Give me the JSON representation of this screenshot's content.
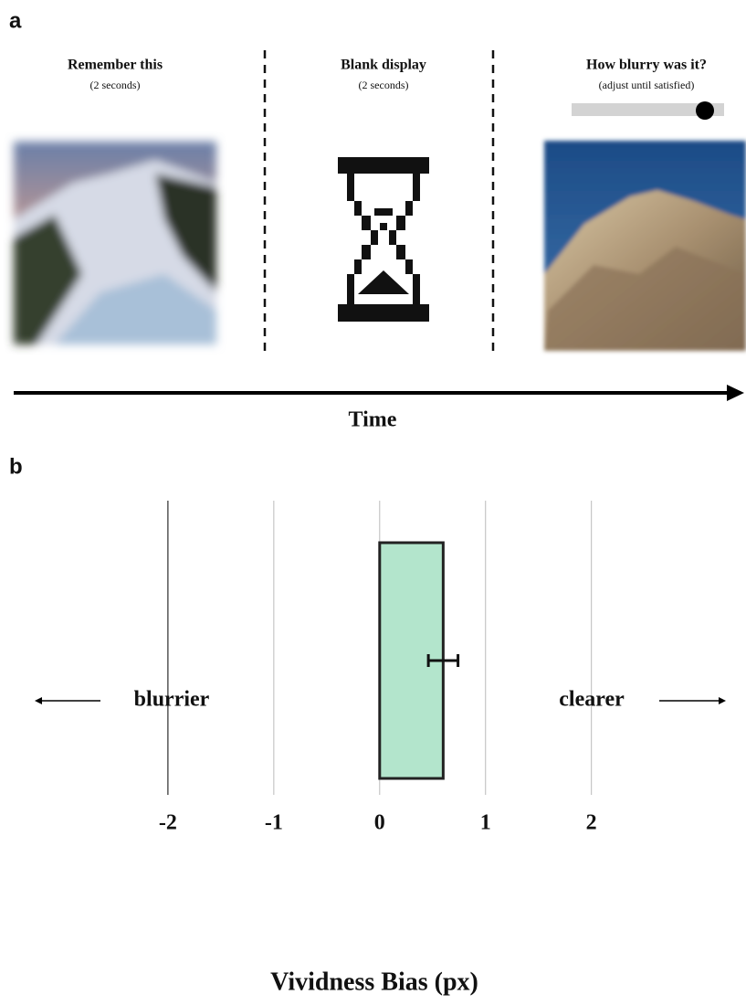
{
  "panel_a": {
    "label": "a",
    "steps": [
      {
        "title": "Remember this",
        "subtitle": "(2 seconds)"
      },
      {
        "title": "Blank display",
        "subtitle": "(2 seconds)"
      },
      {
        "title": "How blurry was it?",
        "subtitle": "(adjust until satisfied)"
      }
    ],
    "time_label": "Time"
  },
  "panel_b": {
    "label": "b"
  },
  "chart_data": {
    "type": "bar",
    "orientation": "horizontal",
    "values": [
      0.6
    ],
    "errors": [
      0.14
    ],
    "color": "#b3e5cc",
    "xlim": [
      -3.5,
      3.4
    ],
    "xticks": [
      -2,
      -1,
      0,
      1,
      2
    ],
    "grid": true,
    "xlabel": "Vividness Bias (px)",
    "annotations": [
      "blurrier",
      "clearer"
    ]
  }
}
